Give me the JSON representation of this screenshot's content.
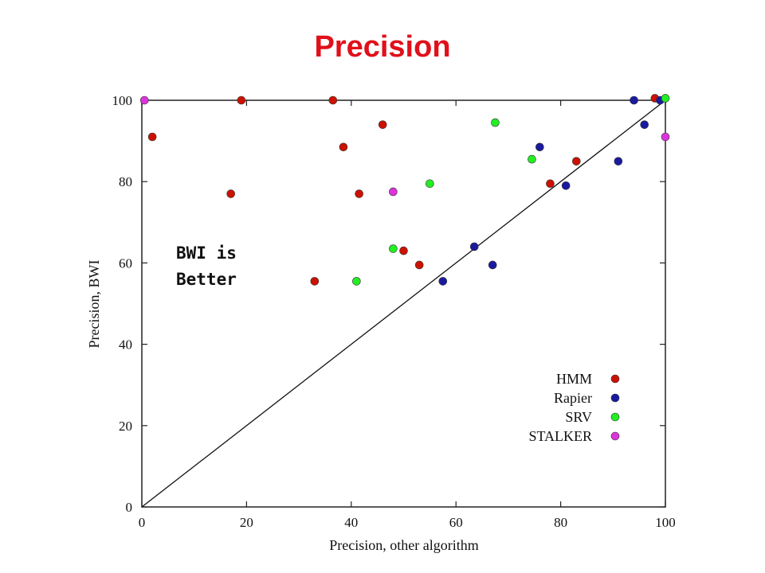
{
  "title": "Precision",
  "chart_data": {
    "type": "scatter",
    "xlabel": "Precision, other algorithm",
    "ylabel": "Precision, BWI",
    "xlim": [
      0,
      100
    ],
    "ylim": [
      0,
      100
    ],
    "xticks": [
      0,
      20,
      40,
      60,
      80,
      100
    ],
    "yticks": [
      0,
      20,
      40,
      60,
      80,
      100
    ],
    "diagonal_line": [
      [
        0,
        0
      ],
      [
        100,
        100
      ]
    ],
    "annotation": [
      "BWI is",
      "Better"
    ],
    "legend_position": "bottom-right",
    "series": [
      {
        "name": "HMM",
        "color": "#cc1100",
        "points": [
          [
            2,
            91
          ],
          [
            17,
            77
          ],
          [
            19,
            100
          ],
          [
            33,
            55.5
          ],
          [
            36.5,
            100
          ],
          [
            38.5,
            88.5
          ],
          [
            41.5,
            77
          ],
          [
            46,
            94
          ],
          [
            50,
            63
          ],
          [
            53,
            59.5
          ],
          [
            78,
            79.5
          ],
          [
            83,
            85
          ],
          [
            98,
            100.5
          ]
        ]
      },
      {
        "name": "Rapier",
        "color": "#1a1aa0",
        "points": [
          [
            57.5,
            55.5
          ],
          [
            63.5,
            64
          ],
          [
            67,
            59.5
          ],
          [
            76,
            88.5
          ],
          [
            81,
            79
          ],
          [
            91,
            85
          ],
          [
            94,
            100
          ],
          [
            96,
            94
          ],
          [
            99,
            100
          ]
        ]
      },
      {
        "name": "SRV",
        "color": "#22ee22",
        "points": [
          [
            41,
            55.5
          ],
          [
            48,
            63.5
          ],
          [
            55,
            79.5
          ],
          [
            67.5,
            94.5
          ],
          [
            74.5,
            85.5
          ],
          [
            100,
            100.5
          ]
        ]
      },
      {
        "name": "STALKER",
        "color": "#dd33dd",
        "points": [
          [
            0.5,
            100
          ],
          [
            48,
            77.5
          ],
          [
            100,
            91
          ]
        ]
      }
    ]
  }
}
